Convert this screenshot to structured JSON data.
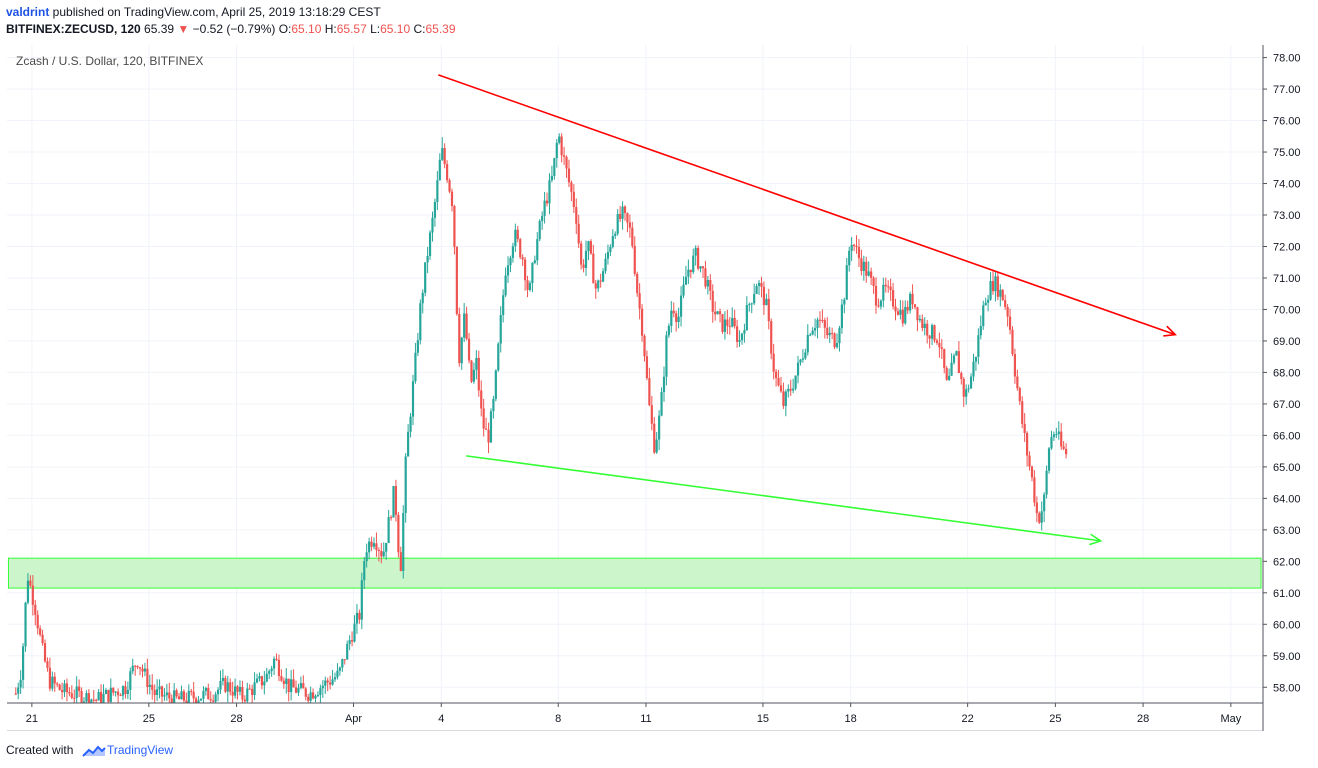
{
  "header": {
    "author": "valdrint",
    "published_text": " published on TradingView.com, April 25, 2019 13:18:29 CEST",
    "symbol": "BITFINEX:ZECUSD, 120",
    "last": " 65.39 ",
    "change_arrow": "▼",
    "change": " −0.52 (−0.79%) ",
    "o_label": "O:",
    "o_value": "65.10",
    "h_label": " H:",
    "h_value": "65.57",
    "l_label": " L:",
    "l_value": "65.10",
    "c_label": " C:",
    "c_value": "65.39"
  },
  "footer": {
    "created_with": "Created with",
    "brand": "TradingView"
  },
  "colors": {
    "up": "#26a69a",
    "down": "#ef5350",
    "resistance": "#ff0000",
    "support": "#33ff33",
    "zone_fill": "#ccf5cc",
    "zone_border": "#33ff33"
  },
  "chart_data": {
    "type": "candlestick",
    "title": "Zcash / U.S. Dollar, 120, BITFINEX",
    "y_range": [
      57.5,
      78.4
    ],
    "y_ticks": [
      "78.00",
      "77.00",
      "76.00",
      "75.00",
      "74.00",
      "73.00",
      "72.00",
      "71.00",
      "70.00",
      "69.00",
      "68.00",
      "67.00",
      "66.00",
      "65.00",
      "64.00",
      "63.00",
      "62.00",
      "61.00",
      "60.00",
      "59.00",
      "58.00"
    ],
    "x_labels": [
      {
        "label": "21",
        "t": 0.0
      },
      {
        "label": "25",
        "t": 4.0
      },
      {
        "label": "28",
        "t": 7.0
      },
      {
        "label": "Apr",
        "t": 11.0
      },
      {
        "label": "4",
        "t": 14.0
      },
      {
        "label": "8",
        "t": 18.0
      },
      {
        "label": "11",
        "t": 21.0
      },
      {
        "label": "15",
        "t": 25.0
      },
      {
        "label": "18",
        "t": 28.0
      },
      {
        "label": "22",
        "t": 32.0
      },
      {
        "label": "25",
        "t": 35.0
      },
      {
        "label": "28",
        "t": 38.0
      },
      {
        "label": "May",
        "t": 41.0
      }
    ],
    "x_range_days": [
      -0.85,
      42.1
    ],
    "price_path": [
      [
        -0.55,
        57.8
      ],
      [
        -0.35,
        58.6
      ],
      [
        -0.15,
        61.6
      ],
      [
        0.1,
        60.6
      ],
      [
        0.35,
        59.2
      ],
      [
        0.6,
        58.2
      ],
      [
        1.0,
        57.9
      ],
      [
        2.2,
        57.6
      ],
      [
        3.2,
        58.0
      ],
      [
        3.6,
        58.9
      ],
      [
        3.9,
        58.3
      ],
      [
        4.2,
        57.8
      ],
      [
        5.0,
        57.6
      ],
      [
        6.2,
        57.8
      ],
      [
        6.6,
        58.1
      ],
      [
        7.2,
        57.7
      ],
      [
        8.0,
        58.3
      ],
      [
        8.3,
        58.9
      ],
      [
        8.8,
        58.0
      ],
      [
        9.5,
        57.8
      ],
      [
        10.0,
        58.1
      ],
      [
        10.5,
        58.4
      ],
      [
        10.9,
        59.6
      ],
      [
        11.2,
        60.3
      ],
      [
        11.4,
        62.4
      ],
      [
        11.7,
        62.8
      ],
      [
        12.0,
        62.2
      ],
      [
        12.2,
        63.2
      ],
      [
        12.4,
        64.3
      ],
      [
        12.6,
        61.6
      ],
      [
        12.8,
        65.4
      ],
      [
        13.1,
        68.2
      ],
      [
        13.3,
        70.2
      ],
      [
        13.5,
        71.6
      ],
      [
        13.7,
        72.8
      ],
      [
        13.9,
        74.2
      ],
      [
        14.0,
        75.1
      ],
      [
        14.2,
        74.3
      ],
      [
        14.4,
        73.3
      ],
      [
        14.6,
        68.4
      ],
      [
        14.8,
        69.8
      ],
      [
        15.0,
        67.6
      ],
      [
        15.2,
        68.3
      ],
      [
        15.4,
        66.4
      ],
      [
        15.6,
        65.9
      ],
      [
        15.8,
        67.1
      ],
      [
        16.0,
        69.3
      ],
      [
        16.2,
        71.3
      ],
      [
        16.5,
        72.4
      ],
      [
        16.8,
        71.6
      ],
      [
        17.0,
        70.4
      ],
      [
        17.2,
        71.8
      ],
      [
        17.5,
        73.2
      ],
      [
        17.8,
        74.2
      ],
      [
        18.0,
        75.6
      ],
      [
        18.3,
        74.3
      ],
      [
        18.6,
        73.1
      ],
      [
        18.8,
        71.2
      ],
      [
        19.0,
        72.1
      ],
      [
        19.3,
        70.6
      ],
      [
        19.6,
        71.4
      ],
      [
        19.9,
        72.6
      ],
      [
        20.2,
        73.0
      ],
      [
        20.5,
        72.4
      ],
      [
        20.7,
        70.6
      ],
      [
        20.9,
        69.2
      ],
      [
        21.1,
        67.0
      ],
      [
        21.3,
        65.6
      ],
      [
        21.5,
        66.8
      ],
      [
        21.7,
        69.0
      ],
      [
        21.9,
        70.2
      ],
      [
        22.1,
        69.7
      ],
      [
        22.4,
        71.2
      ],
      [
        22.7,
        71.7
      ],
      [
        23.0,
        71.1
      ],
      [
        23.3,
        70.0
      ],
      [
        23.6,
        69.5
      ],
      [
        23.9,
        69.6
      ],
      [
        24.2,
        69.0
      ],
      [
        24.5,
        70.1
      ],
      [
        24.8,
        70.9
      ],
      [
        25.1,
        70.2
      ],
      [
        25.4,
        67.9
      ],
      [
        25.7,
        67.0
      ],
      [
        26.0,
        67.6
      ],
      [
        26.3,
        68.4
      ],
      [
        26.6,
        69.4
      ],
      [
        26.9,
        69.7
      ],
      [
        27.2,
        69.2
      ],
      [
        27.5,
        69.0
      ],
      [
        27.8,
        70.6
      ],
      [
        28.0,
        72.3
      ],
      [
        28.3,
        71.6
      ],
      [
        28.6,
        71.1
      ],
      [
        28.9,
        70.3
      ],
      [
        29.2,
        70.6
      ],
      [
        29.5,
        70.2
      ],
      [
        29.8,
        69.8
      ],
      [
        30.1,
        70.4
      ],
      [
        30.4,
        69.6
      ],
      [
        30.7,
        69.3
      ],
      [
        31.0,
        69.1
      ],
      [
        31.3,
        67.5
      ],
      [
        31.6,
        68.6
      ],
      [
        31.9,
        67.2
      ],
      [
        32.1,
        67.8
      ],
      [
        32.3,
        68.7
      ],
      [
        32.6,
        70.4
      ],
      [
        32.9,
        70.9
      ],
      [
        33.2,
        70.4
      ],
      [
        33.4,
        69.8
      ],
      [
        33.6,
        68.2
      ],
      [
        33.8,
        66.8
      ],
      [
        34.0,
        65.6
      ],
      [
        34.2,
        64.6
      ],
      [
        34.4,
        63.3
      ],
      [
        34.6,
        63.8
      ],
      [
        34.8,
        65.8
      ],
      [
        35.0,
        66.2
      ],
      [
        35.2,
        65.6
      ],
      [
        35.4,
        65.4
      ]
    ],
    "annotations": {
      "resistance_line": {
        "from": [
          13.9,
          77.45
        ],
        "to": [
          39.1,
          69.2
        ],
        "color": "#ff0000"
      },
      "support_line": {
        "from": [
          14.85,
          65.35
        ],
        "to": [
          36.55,
          62.65
        ],
        "color": "#33ff33"
      },
      "support_zone": {
        "x_start": -0.8,
        "y_low": 61.15,
        "y_high": 62.1
      }
    }
  }
}
